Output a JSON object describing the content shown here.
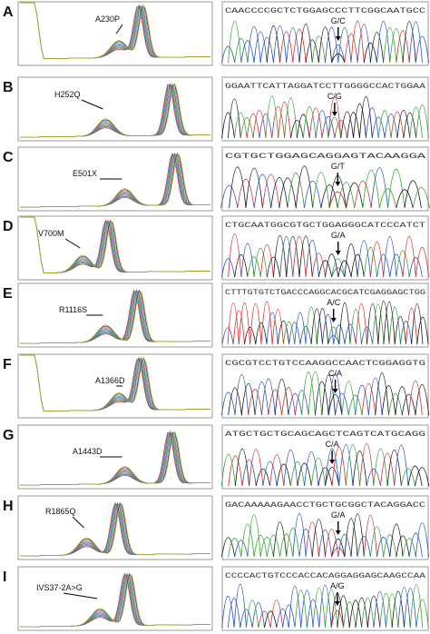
{
  "panels": [
    {
      "letter": "A",
      "mutation": "A230P",
      "sequence": "CAACCCCGCTCTGGAGCCCTTCGGCAATGCC",
      "change": "G/C"
    },
    {
      "letter": "B",
      "mutation": "H252Q",
      "sequence": "GGAATTCATTAGGATCCTTGGGGCCACTGGAA",
      "change": "C/G"
    },
    {
      "letter": "C",
      "mutation": "E501X",
      "sequence": "CGTGCTGGAGCAGGAGTACAAGGA",
      "change": "G/T"
    },
    {
      "letter": "D",
      "mutation": "V700M",
      "sequence": "CTGCAATGGCGTGCTGGAGGGCATCCCATCT",
      "change": "G/A"
    },
    {
      "letter": "E",
      "mutation": "R1116S",
      "sequence": "CTTTGTGTCTGACCCAGGCACGCATCGAGGAGCTGG",
      "change": "A/C"
    },
    {
      "letter": "F",
      "mutation": "A1366D",
      "sequence": "CGCGTCCTGTCCAAGGCCAACTCGGAGGTG",
      "change": "C/A"
    },
    {
      "letter": "G",
      "mutation": "A1443D",
      "sequence": "ATGCTGCTGCAGCAGCTCAGTCATGCAGG",
      "change": "C/A"
    },
    {
      "letter": "H",
      "mutation": "R1865Q",
      "sequence": "GACAAAAAGAACCTGCTGCGGCTACAGGACC",
      "change": "G/A"
    },
    {
      "letter": "I",
      "mutation": "IVS37-2A>G",
      "sequence": "CCCCACTGTCCCACCACAGGAGGAGCAAGCCAA",
      "change": "A/G"
    }
  ]
}
